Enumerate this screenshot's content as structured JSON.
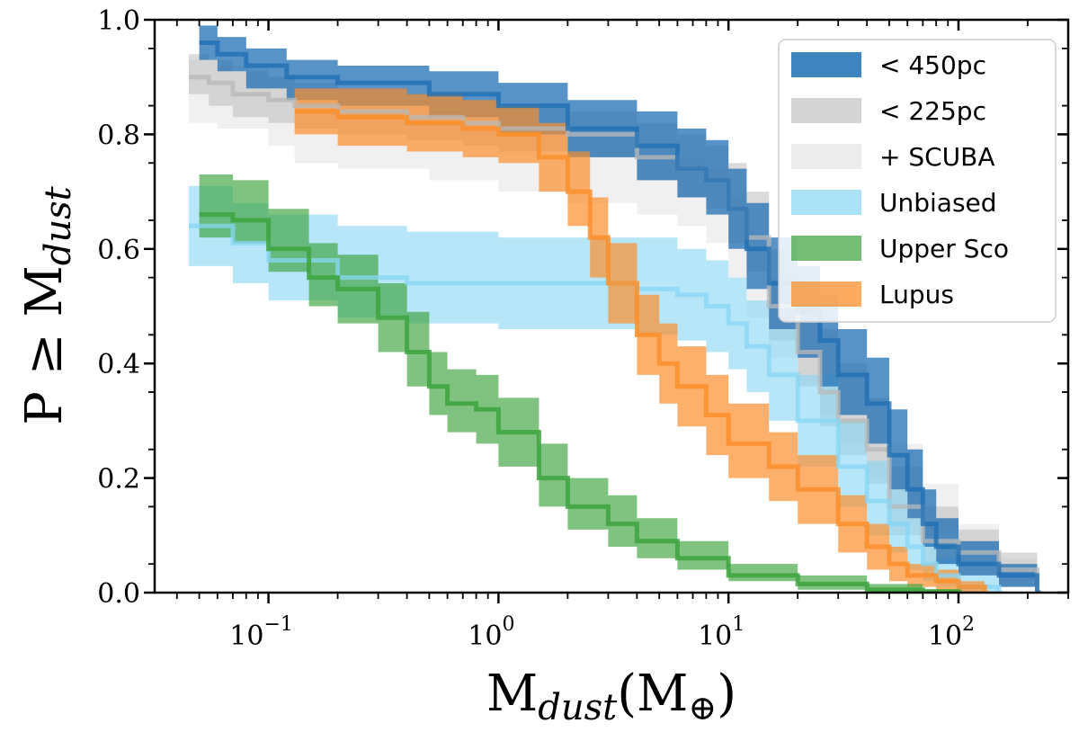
{
  "chart_data": {
    "type": "area",
    "title": "",
    "xscale": "log",
    "xlim": [
      0.032,
      300
    ],
    "ylim": [
      0.0,
      1.0
    ],
    "grid": false,
    "legend_position": "top-right",
    "xlabel": {
      "main": "M",
      "sub": "dust",
      "unit": "(M",
      "unit_sub": "⊕",
      "close": ")"
    },
    "ylabel": {
      "main": "P ≥ M",
      "sub": "dust"
    },
    "x_ticks": [
      {
        "value": 0.1,
        "base": "10",
        "exp": "−1"
      },
      {
        "value": 1,
        "label": "10",
        "exp": "0",
        "base": "10"
      },
      {
        "value": 10,
        "base": "10",
        "exp": "1"
      },
      {
        "value": 100,
        "base": "10",
        "exp": "2"
      }
    ],
    "y_ticks": [
      {
        "value": 0.0,
        "label": "0.0"
      },
      {
        "value": 0.2,
        "label": "0.2"
      },
      {
        "value": 0.4,
        "label": "0.4"
      },
      {
        "value": 0.6,
        "label": "0.6"
      },
      {
        "value": 0.8,
        "label": "0.8"
      },
      {
        "value": 1.0,
        "label": "1.0"
      }
    ],
    "series": [
      {
        "name": "+ SCUBA",
        "color": "#e6e6e6",
        "band_opacity": 0.6,
        "line_opacity": 0.0,
        "x": [
          0.045,
          0.06,
          0.1,
          0.13,
          0.2,
          0.5,
          1,
          2,
          4,
          6,
          8,
          10,
          12,
          15,
          20,
          25,
          30,
          40,
          50,
          70,
          100,
          150,
          220
        ],
        "y": [
          0.88,
          0.87,
          0.84,
          0.81,
          0.8,
          0.78,
          0.76,
          0.74,
          0.72,
          0.7,
          0.68,
          0.62,
          0.55,
          0.48,
          0.44,
          0.38,
          0.32,
          0.26,
          0.2,
          0.14,
          0.08,
          0.04,
          0.0
        ],
        "lo": [
          0.82,
          0.81,
          0.78,
          0.75,
          0.74,
          0.72,
          0.7,
          0.68,
          0.66,
          0.64,
          0.61,
          0.55,
          0.48,
          0.41,
          0.37,
          0.31,
          0.26,
          0.2,
          0.15,
          0.1,
          0.05,
          0.02,
          0.0
        ],
        "hi": [
          0.93,
          0.92,
          0.9,
          0.87,
          0.86,
          0.84,
          0.82,
          0.8,
          0.78,
          0.76,
          0.74,
          0.69,
          0.62,
          0.55,
          0.51,
          0.45,
          0.39,
          0.33,
          0.26,
          0.19,
          0.12,
          0.06,
          0.0
        ]
      },
      {
        "name": "< 225pc",
        "color": "#b8b8b8",
        "band_opacity": 0.5,
        "line_opacity": 0.75,
        "x": [
          0.045,
          0.055,
          0.07,
          0.1,
          0.13,
          0.2,
          0.4,
          0.7,
          1,
          2,
          4,
          6,
          8,
          10,
          12,
          15,
          20,
          25,
          30,
          40,
          50,
          70,
          100,
          150,
          220
        ],
        "y": [
          0.9,
          0.89,
          0.87,
          0.86,
          0.85,
          0.84,
          0.83,
          0.82,
          0.81,
          0.8,
          0.76,
          0.74,
          0.72,
          0.67,
          0.62,
          0.5,
          0.42,
          0.35,
          0.3,
          0.25,
          0.15,
          0.09,
          0.07,
          0.04,
          0.0
        ],
        "lo": [
          0.87,
          0.85,
          0.83,
          0.82,
          0.81,
          0.8,
          0.79,
          0.78,
          0.77,
          0.76,
          0.72,
          0.69,
          0.67,
          0.61,
          0.56,
          0.44,
          0.36,
          0.29,
          0.24,
          0.19,
          0.1,
          0.05,
          0.03,
          0.01,
          0.0
        ],
        "hi": [
          0.94,
          0.93,
          0.91,
          0.9,
          0.89,
          0.88,
          0.87,
          0.86,
          0.85,
          0.84,
          0.82,
          0.8,
          0.78,
          0.75,
          0.7,
          0.6,
          0.53,
          0.46,
          0.4,
          0.34,
          0.22,
          0.15,
          0.11,
          0.07,
          0.0
        ]
      },
      {
        "name": "Unbiased",
        "color": "#87d5f5",
        "band_opacity": 0.6,
        "line_opacity": 0.75,
        "x": [
          0.045,
          0.07,
          0.1,
          0.2,
          0.4,
          1,
          2,
          4,
          6,
          8,
          10,
          12,
          15,
          20,
          30,
          40,
          50,
          60,
          70,
          80,
          100,
          150
        ],
        "y": [
          0.64,
          0.61,
          0.58,
          0.55,
          0.54,
          0.54,
          0.54,
          0.53,
          0.52,
          0.5,
          0.47,
          0.43,
          0.38,
          0.3,
          0.22,
          0.16,
          0.12,
          0.08,
          0.05,
          0.03,
          0.01,
          0.0
        ],
        "lo": [
          0.57,
          0.54,
          0.51,
          0.48,
          0.47,
          0.46,
          0.46,
          0.45,
          0.44,
          0.42,
          0.39,
          0.35,
          0.3,
          0.22,
          0.15,
          0.1,
          0.07,
          0.04,
          0.02,
          0.01,
          0.0,
          0.0
        ],
        "hi": [
          0.71,
          0.68,
          0.66,
          0.64,
          0.63,
          0.62,
          0.62,
          0.62,
          0.6,
          0.58,
          0.55,
          0.51,
          0.46,
          0.38,
          0.3,
          0.23,
          0.18,
          0.13,
          0.09,
          0.06,
          0.03,
          0.0
        ]
      },
      {
        "name": "< 450pc",
        "color": "#1f6fb4",
        "band_opacity": 0.75,
        "line_opacity": 0.8,
        "x": [
          0.05,
          0.06,
          0.08,
          0.12,
          0.2,
          0.5,
          1,
          2,
          4,
          6,
          8,
          10,
          12,
          15,
          20,
          25,
          30,
          40,
          50,
          60,
          70,
          80,
          100,
          150,
          220
        ],
        "y": [
          0.96,
          0.94,
          0.92,
          0.9,
          0.89,
          0.87,
          0.85,
          0.81,
          0.78,
          0.74,
          0.72,
          0.67,
          0.6,
          0.54,
          0.49,
          0.44,
          0.38,
          0.33,
          0.24,
          0.18,
          0.12,
          0.08,
          0.05,
          0.03,
          0.0
        ],
        "lo": [
          0.93,
          0.91,
          0.88,
          0.86,
          0.85,
          0.83,
          0.8,
          0.76,
          0.72,
          0.69,
          0.66,
          0.6,
          0.53,
          0.46,
          0.41,
          0.36,
          0.31,
          0.26,
          0.18,
          0.13,
          0.08,
          0.05,
          0.03,
          0.01,
          0.0
        ],
        "hi": [
          0.99,
          0.97,
          0.95,
          0.93,
          0.92,
          0.91,
          0.89,
          0.86,
          0.84,
          0.81,
          0.79,
          0.74,
          0.68,
          0.62,
          0.57,
          0.52,
          0.46,
          0.41,
          0.32,
          0.25,
          0.18,
          0.13,
          0.09,
          0.05,
          0.0
        ]
      },
      {
        "name": "Lupus",
        "color": "#fb8f2c",
        "band_opacity": 0.7,
        "line_opacity": 0.85,
        "x": [
          0.13,
          0.2,
          0.4,
          0.7,
          1,
          1.5,
          2,
          2.5,
          3,
          4,
          5,
          6,
          8,
          10,
          15,
          20,
          30,
          40,
          50,
          60,
          80,
          100,
          130
        ],
        "y": [
          0.84,
          0.83,
          0.82,
          0.81,
          0.8,
          0.76,
          0.7,
          0.62,
          0.54,
          0.45,
          0.4,
          0.36,
          0.31,
          0.26,
          0.22,
          0.18,
          0.12,
          0.08,
          0.05,
          0.03,
          0.02,
          0.01,
          0.0
        ],
        "lo": [
          0.8,
          0.78,
          0.77,
          0.76,
          0.75,
          0.7,
          0.64,
          0.55,
          0.47,
          0.38,
          0.33,
          0.29,
          0.24,
          0.2,
          0.16,
          0.12,
          0.07,
          0.04,
          0.02,
          0.01,
          0.0,
          0.0,
          0.0
        ],
        "hi": [
          0.88,
          0.88,
          0.87,
          0.86,
          0.85,
          0.82,
          0.77,
          0.69,
          0.61,
          0.52,
          0.47,
          0.43,
          0.38,
          0.33,
          0.28,
          0.24,
          0.17,
          0.12,
          0.08,
          0.05,
          0.04,
          0.02,
          0.0
        ]
      },
      {
        "name": "Upper Sco",
        "color": "#3ca33c",
        "band_opacity": 0.65,
        "line_opacity": 0.85,
        "x": [
          0.05,
          0.07,
          0.1,
          0.15,
          0.2,
          0.3,
          0.4,
          0.5,
          0.6,
          0.8,
          1,
          1.5,
          2,
          3,
          4,
          6,
          10,
          20,
          40,
          70,
          100
        ],
        "y": [
          0.66,
          0.65,
          0.6,
          0.55,
          0.53,
          0.48,
          0.42,
          0.36,
          0.33,
          0.32,
          0.28,
          0.2,
          0.15,
          0.12,
          0.09,
          0.06,
          0.03,
          0.015,
          0.005,
          0.002,
          0.0
        ],
        "lo": [
          0.62,
          0.61,
          0.56,
          0.5,
          0.47,
          0.42,
          0.36,
          0.31,
          0.28,
          0.26,
          0.22,
          0.15,
          0.11,
          0.08,
          0.06,
          0.04,
          0.02,
          0.005,
          0.0,
          0.0,
          0.0
        ],
        "hi": [
          0.73,
          0.72,
          0.67,
          0.61,
          0.59,
          0.54,
          0.49,
          0.42,
          0.39,
          0.38,
          0.34,
          0.26,
          0.2,
          0.17,
          0.13,
          0.09,
          0.05,
          0.03,
          0.015,
          0.006,
          0.0
        ]
      }
    ],
    "legend": [
      {
        "label": "< 450pc",
        "color": "#1f6fb4",
        "opacity": 0.85
      },
      {
        "label": "< 225pc",
        "color": "#b8b8b8",
        "opacity": 0.6
      },
      {
        "label": "+ SCUBA",
        "color": "#e6e6e6",
        "opacity": 0.75
      },
      {
        "label": "Unbiased",
        "color": "#87d5f5",
        "opacity": 0.7
      },
      {
        "label": "Upper Sco",
        "color": "#3ca33c",
        "opacity": 0.7
      },
      {
        "label": "Lupus",
        "color": "#fb8f2c",
        "opacity": 0.75
      }
    ]
  }
}
